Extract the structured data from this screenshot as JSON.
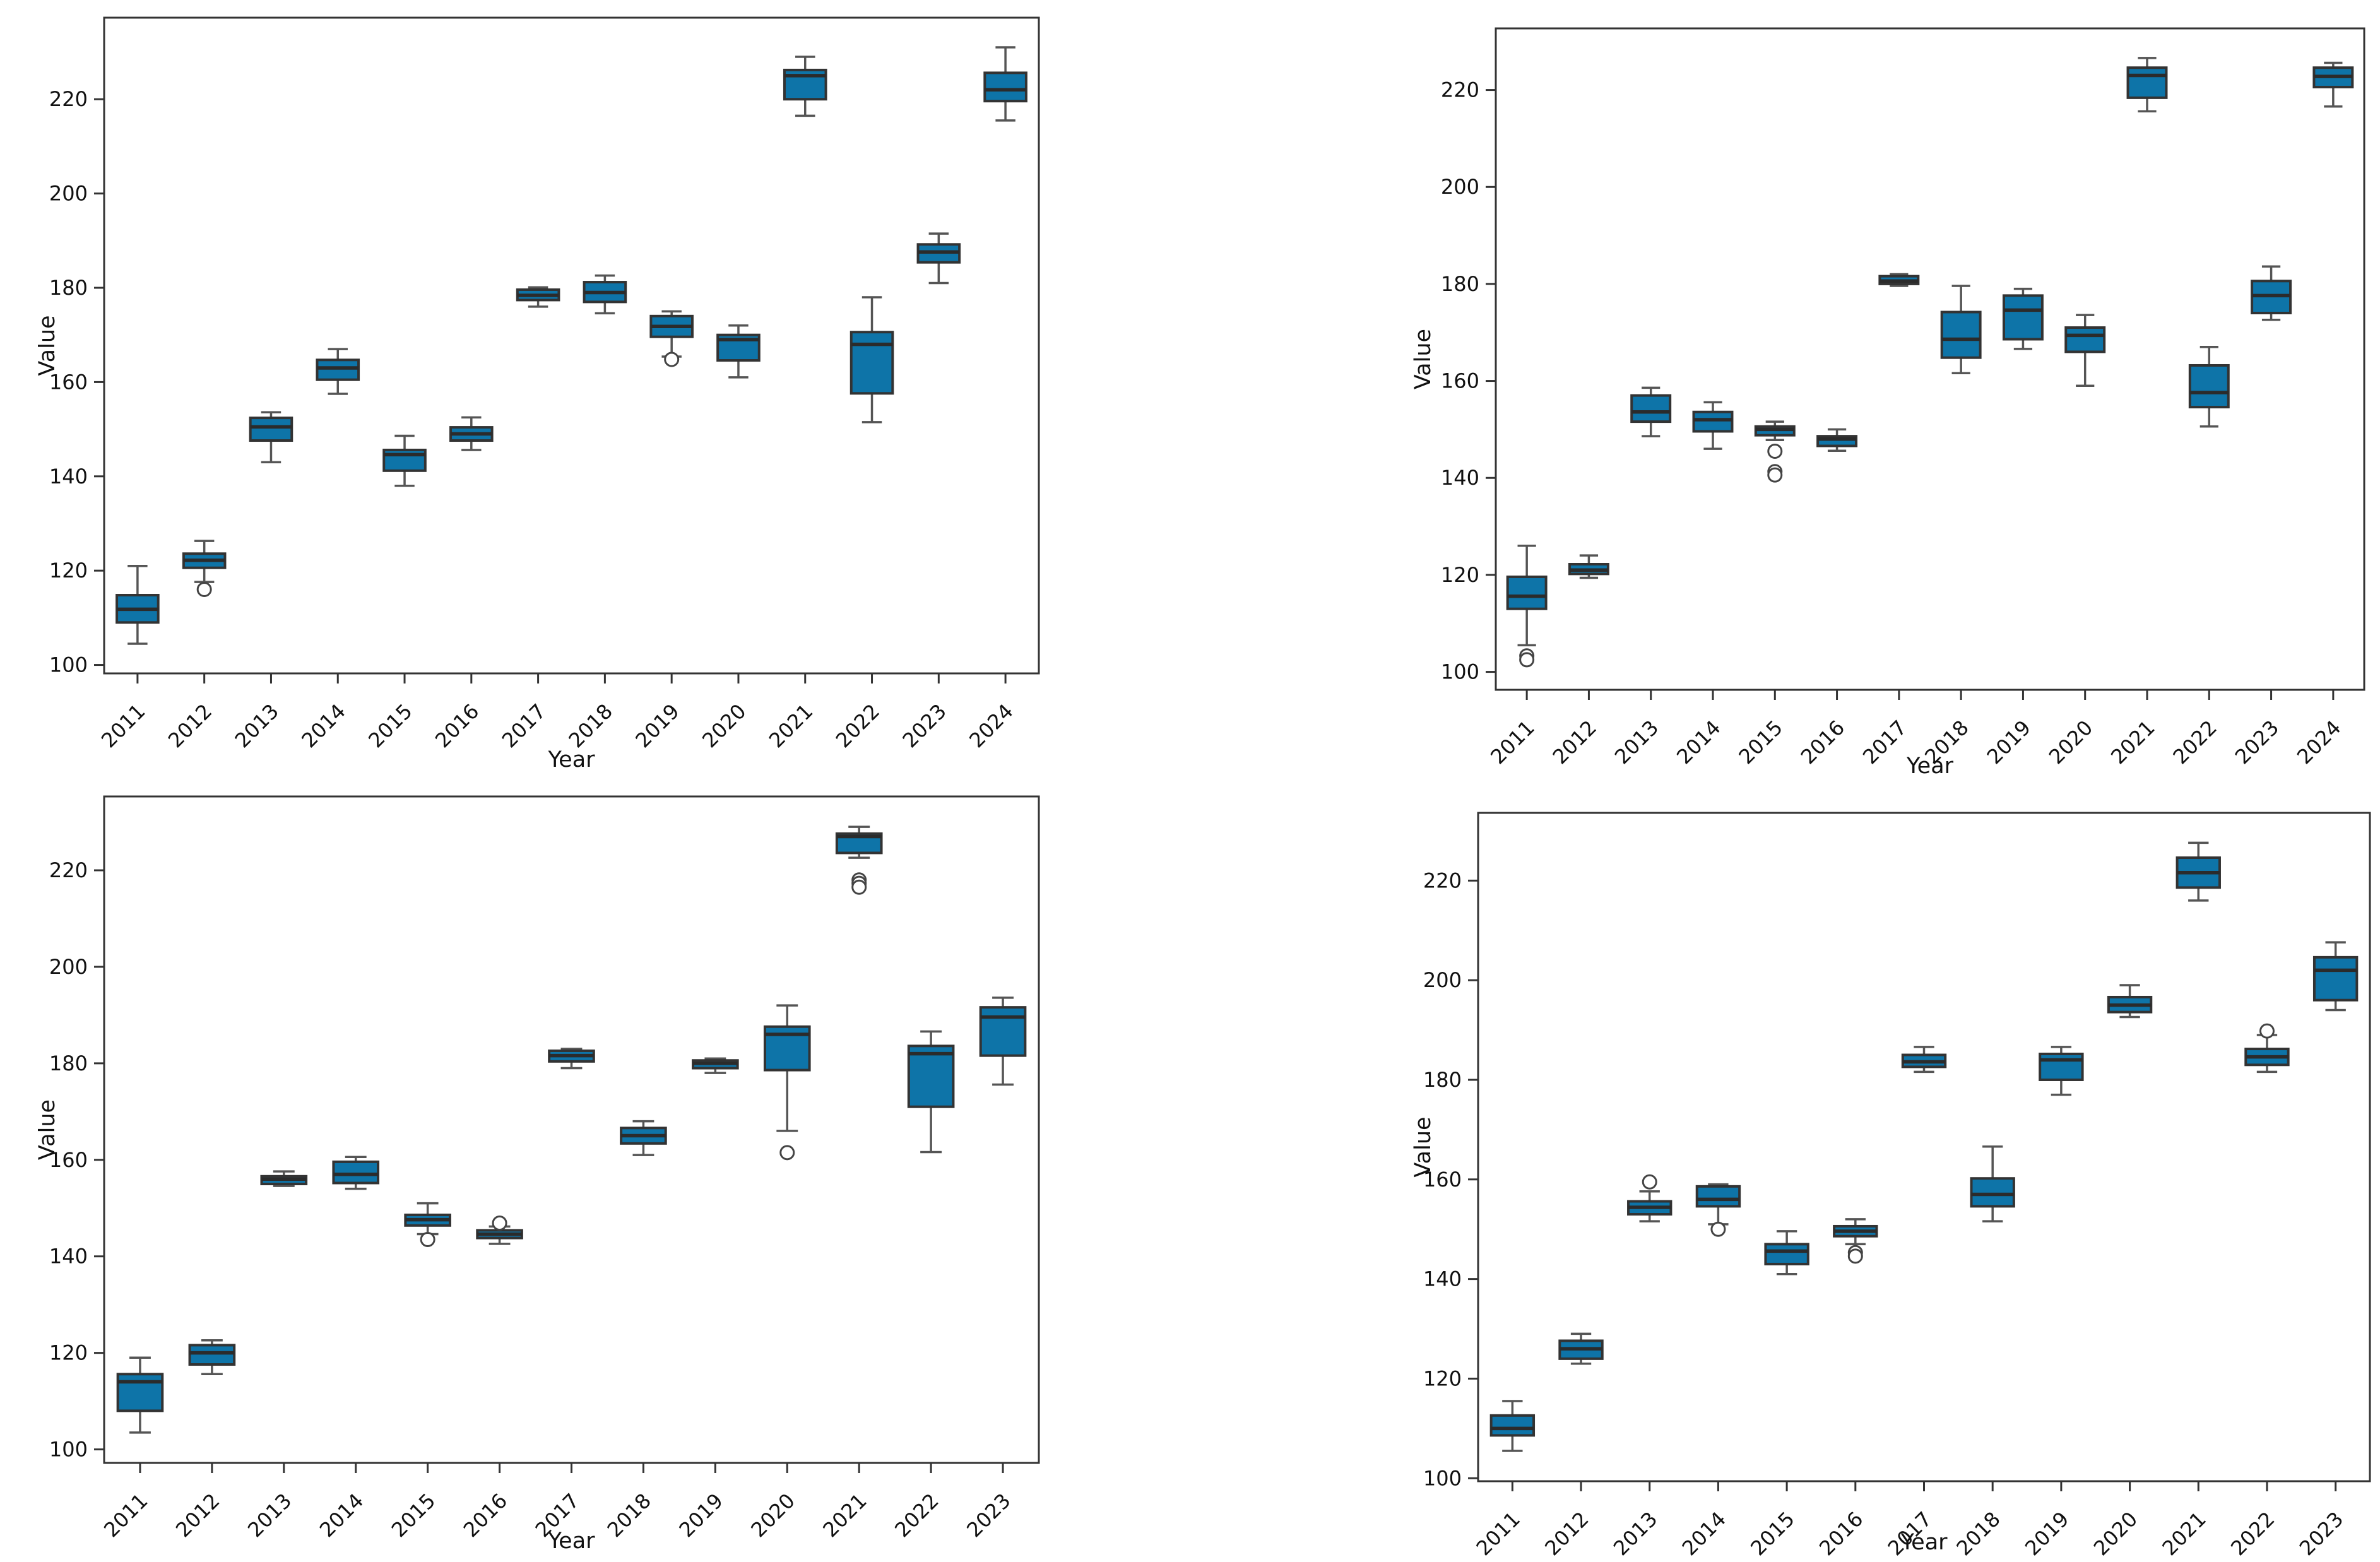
{
  "figure": {
    "background": "#ffffff",
    "grid": "off",
    "legend": "none",
    "title": ""
  },
  "style": {
    "box_fill": "#0e74a8",
    "box_edge": "#333333",
    "median_color": "#2b2b2b",
    "whisker_color": "#555555",
    "cap_color": "#555555",
    "outlier_color": "#444444",
    "outlier_fill": "#ffffff",
    "axis_color": "#333333",
    "text_color": "#111111"
  },
  "chart_data": [
    {
      "id": "top-left",
      "type": "box",
      "title": "",
      "xlabel": "Year",
      "ylabel": "Value",
      "categories": [
        "2011",
        "2012",
        "2013",
        "2014",
        "2015",
        "2016",
        "2017",
        "2018",
        "2019",
        "2020",
        "2021",
        "2022",
        "2023",
        "2024"
      ],
      "yticks": [
        100,
        120,
        140,
        160,
        180,
        200,
        220
      ],
      "ylim": [
        98.2,
        237.3
      ],
      "boxes": [
        {
          "low": 104.5,
          "q1": 109.0,
          "median": 111.8,
          "q3": 114.8,
          "high": 121.0,
          "outliers": []
        },
        {
          "low": 117.6,
          "q1": 120.6,
          "median": 122.2,
          "q3": 123.6,
          "high": 126.3,
          "outliers": [
            116.0
          ]
        },
        {
          "low": 143.0,
          "q1": 147.6,
          "median": 150.5,
          "q3": 152.4,
          "high": 153.6,
          "outliers": []
        },
        {
          "low": 157.5,
          "q1": 160.5,
          "median": 163.0,
          "q3": 164.7,
          "high": 167.0,
          "outliers": []
        },
        {
          "low": 138.0,
          "q1": 141.2,
          "median": 144.6,
          "q3": 145.6,
          "high": 148.6,
          "outliers": []
        },
        {
          "low": 145.6,
          "q1": 147.6,
          "median": 149.0,
          "q3": 150.4,
          "high": 152.5,
          "outliers": []
        },
        {
          "low": 176.0,
          "q1": 177.4,
          "median": 178.4,
          "q3": 179.6,
          "high": 180.1,
          "outliers": []
        },
        {
          "low": 174.6,
          "q1": 177.0,
          "median": 179.0,
          "q3": 181.2,
          "high": 182.6,
          "outliers": []
        },
        {
          "low": 165.4,
          "q1": 169.6,
          "median": 171.8,
          "q3": 174.0,
          "high": 175.0,
          "outliers": [
            164.8
          ]
        },
        {
          "low": 161.0,
          "q1": 164.6,
          "median": 169.0,
          "q3": 170.0,
          "high": 172.0,
          "outliers": []
        },
        {
          "low": 216.5,
          "q1": 220.0,
          "median": 225.0,
          "q3": 226.2,
          "high": 229.0,
          "outliers": []
        },
        {
          "low": 151.5,
          "q1": 157.6,
          "median": 168.0,
          "q3": 170.6,
          "high": 178.0,
          "outliers": []
        },
        {
          "low": 181.0,
          "q1": 185.4,
          "median": 187.6,
          "q3": 189.2,
          "high": 191.5,
          "outliers": []
        },
        {
          "low": 215.5,
          "q1": 219.6,
          "median": 222.0,
          "q3": 225.6,
          "high": 231.0,
          "outliers": []
        }
      ]
    },
    {
      "id": "top-right",
      "type": "box",
      "title": "",
      "xlabel": "Year",
      "ylabel": "Value",
      "categories": [
        "2011",
        "2012",
        "2013",
        "2014",
        "2015",
        "2016",
        "2017",
        "2018",
        "2019",
        "2020",
        "2021",
        "2022",
        "2023",
        "2024"
      ],
      "yticks": [
        100,
        120,
        140,
        160,
        180,
        200,
        220
      ],
      "ylim": [
        96.3,
        232.7
      ],
      "boxes": [
        {
          "low": 105.5,
          "q1": 113.0,
          "median": 115.6,
          "q3": 119.6,
          "high": 126.0,
          "outliers": [
            103.3,
            102.5
          ]
        },
        {
          "low": 119.4,
          "q1": 120.2,
          "median": 121.0,
          "q3": 122.2,
          "high": 124.0,
          "outliers": []
        },
        {
          "low": 148.6,
          "q1": 151.6,
          "median": 153.6,
          "q3": 157.0,
          "high": 158.6,
          "outliers": []
        },
        {
          "low": 146.0,
          "q1": 149.6,
          "median": 152.0,
          "q3": 153.6,
          "high": 155.6,
          "outliers": []
        },
        {
          "low": 147.8,
          "q1": 148.8,
          "median": 150.0,
          "q3": 150.6,
          "high": 151.6,
          "outliers": [
            145.5,
            141.3,
            140.6
          ]
        },
        {
          "low": 145.6,
          "q1": 146.6,
          "median": 148.0,
          "q3": 148.6,
          "high": 150.0,
          "outliers": []
        },
        {
          "low": 179.6,
          "q1": 180.0,
          "median": 180.6,
          "q3": 181.6,
          "high": 182.0,
          "outliers": []
        },
        {
          "low": 161.6,
          "q1": 164.8,
          "median": 168.6,
          "q3": 174.2,
          "high": 179.6,
          "outliers": []
        },
        {
          "low": 166.6,
          "q1": 168.6,
          "median": 174.6,
          "q3": 177.6,
          "high": 179.0,
          "outliers": []
        },
        {
          "low": 159.0,
          "q1": 166.0,
          "median": 169.4,
          "q3": 171.0,
          "high": 173.6,
          "outliers": []
        },
        {
          "low": 215.6,
          "q1": 218.4,
          "median": 223.0,
          "q3": 224.6,
          "high": 226.6,
          "outliers": []
        },
        {
          "low": 150.6,
          "q1": 154.6,
          "median": 157.6,
          "q3": 163.2,
          "high": 167.0,
          "outliers": []
        },
        {
          "low": 172.6,
          "q1": 174.0,
          "median": 177.6,
          "q3": 180.6,
          "high": 183.6,
          "outliers": []
        },
        {
          "low": 216.6,
          "q1": 220.6,
          "median": 222.8,
          "q3": 224.6,
          "high": 225.6,
          "outliers": []
        }
      ]
    },
    {
      "id": "bottom-left",
      "type": "box",
      "title": "",
      "xlabel": "Year",
      "ylabel": "Value",
      "categories": [
        "2011",
        "2012",
        "2013",
        "2014",
        "2015",
        "2016",
        "2017",
        "2018",
        "2019",
        "2020",
        "2021",
        "2022",
        "2023"
      ],
      "yticks": [
        100,
        120,
        140,
        160,
        180,
        200,
        220
      ],
      "ylim": [
        97.2,
        235.3
      ],
      "boxes": [
        {
          "low": 103.5,
          "q1": 108.0,
          "median": 114.0,
          "q3": 115.6,
          "high": 119.0,
          "outliers": []
        },
        {
          "low": 115.6,
          "q1": 117.6,
          "median": 120.0,
          "q3": 121.6,
          "high": 122.6,
          "outliers": []
        },
        {
          "low": 154.6,
          "q1": 155.0,
          "median": 156.0,
          "q3": 156.6,
          "high": 157.6,
          "outliers": []
        },
        {
          "low": 154.0,
          "q1": 155.2,
          "median": 157.0,
          "q3": 159.6,
          "high": 160.6,
          "outliers": []
        },
        {
          "low": 144.6,
          "q1": 146.4,
          "median": 147.6,
          "q3": 148.6,
          "high": 151.0,
          "outliers": [
            143.5
          ]
        },
        {
          "low": 142.6,
          "q1": 143.8,
          "median": 144.6,
          "q3": 145.4,
          "high": 146.2,
          "outliers": [
            146.9
          ]
        },
        {
          "low": 179.0,
          "q1": 180.4,
          "median": 181.6,
          "q3": 182.6,
          "high": 183.0,
          "outliers": []
        },
        {
          "low": 161.0,
          "q1": 163.4,
          "median": 165.0,
          "q3": 166.6,
          "high": 168.0,
          "outliers": []
        },
        {
          "low": 178.0,
          "q1": 179.0,
          "median": 180.0,
          "q3": 180.6,
          "high": 181.0,
          "outliers": []
        },
        {
          "low": 166.0,
          "q1": 178.6,
          "median": 186.0,
          "q3": 187.6,
          "high": 192.0,
          "outliers": [
            161.5
          ]
        },
        {
          "low": 222.6,
          "q1": 223.6,
          "median": 227.0,
          "q3": 227.6,
          "high": 229.0,
          "outliers": [
            218.0,
            217.3,
            216.5
          ]
        },
        {
          "low": 161.6,
          "q1": 171.0,
          "median": 182.0,
          "q3": 183.6,
          "high": 186.6,
          "outliers": []
        },
        {
          "low": 175.6,
          "q1": 181.6,
          "median": 189.6,
          "q3": 191.6,
          "high": 193.6,
          "outliers": []
        }
      ]
    },
    {
      "id": "bottom-right",
      "type": "box",
      "title": "",
      "xlabel": "Year",
      "ylabel": "Value",
      "categories": [
        "2011",
        "2012",
        "2013",
        "2014",
        "2015",
        "2016",
        "2017",
        "2018",
        "2019",
        "2020",
        "2021",
        "2022",
        "2023"
      ],
      "yticks": [
        100,
        120,
        140,
        160,
        180,
        200,
        220
      ],
      "ylim": [
        99.4,
        233.6
      ],
      "boxes": [
        {
          "low": 105.5,
          "q1": 108.6,
          "median": 110.0,
          "q3": 112.6,
          "high": 115.5,
          "outliers": []
        },
        {
          "low": 123.0,
          "q1": 124.0,
          "median": 126.0,
          "q3": 127.6,
          "high": 129.0,
          "outliers": []
        },
        {
          "low": 151.6,
          "q1": 153.0,
          "median": 154.4,
          "q3": 155.6,
          "high": 157.6,
          "outliers": [
            159.5
          ]
        },
        {
          "low": 151.0,
          "q1": 154.6,
          "median": 156.0,
          "q3": 158.6,
          "high": 159.0,
          "outliers": [
            150.0
          ]
        },
        {
          "low": 141.0,
          "q1": 143.0,
          "median": 145.6,
          "q3": 147.0,
          "high": 149.6,
          "outliers": []
        },
        {
          "low": 147.0,
          "q1": 148.6,
          "median": 149.6,
          "q3": 150.6,
          "high": 152.0,
          "outliers": [
            145.3,
            144.6
          ]
        },
        {
          "low": 181.6,
          "q1": 182.6,
          "median": 183.6,
          "q3": 185.0,
          "high": 186.6,
          "outliers": []
        },
        {
          "low": 151.6,
          "q1": 154.6,
          "median": 157.0,
          "q3": 160.2,
          "high": 166.6,
          "outliers": []
        },
        {
          "low": 177.0,
          "q1": 180.0,
          "median": 184.0,
          "q3": 185.2,
          "high": 186.6,
          "outliers": []
        },
        {
          "low": 192.6,
          "q1": 193.6,
          "median": 195.0,
          "q3": 196.6,
          "high": 199.0,
          "outliers": []
        },
        {
          "low": 216.0,
          "q1": 218.6,
          "median": 221.6,
          "q3": 224.6,
          "high": 227.6,
          "outliers": []
        },
        {
          "low": 181.6,
          "q1": 183.0,
          "median": 184.6,
          "q3": 186.2,
          "high": 189.0,
          "outliers": [
            189.8
          ]
        },
        {
          "low": 194.0,
          "q1": 196.0,
          "median": 202.0,
          "q3": 204.6,
          "high": 207.6,
          "outliers": []
        }
      ]
    }
  ]
}
